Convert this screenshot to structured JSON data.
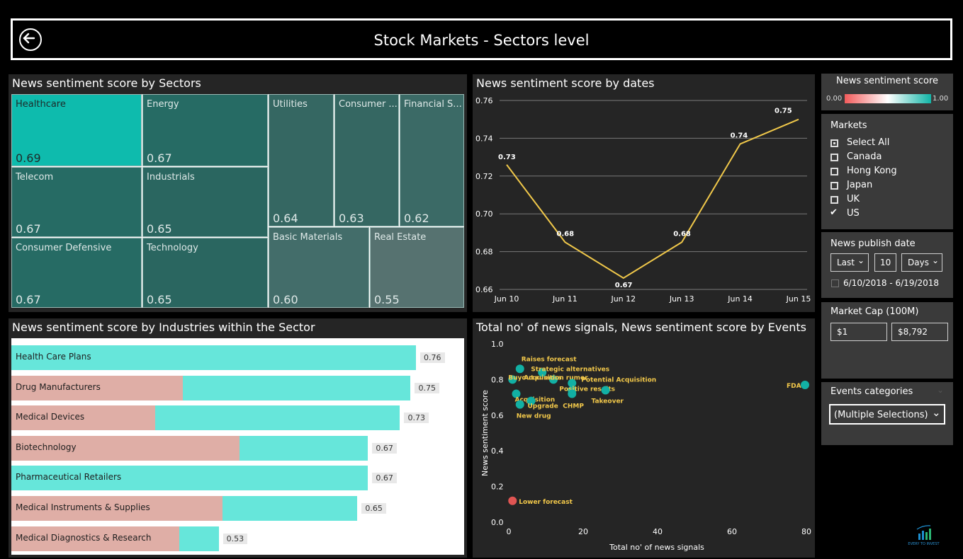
{
  "header": {
    "title": "Stock Markets - Sectors level"
  },
  "colors": {
    "teal": "#66e6da",
    "pink": "#dfaea6",
    "line": "#f0c84a",
    "panel": "#252525"
  },
  "sectors": {
    "title": "News sentiment score by Sectors",
    "tiles": [
      {
        "name": "Healthcare",
        "value": "0.69",
        "color": "#0ebbad"
      },
      {
        "name": "Energy",
        "value": "0.67",
        "color": "#266b64"
      },
      {
        "name": "Telecom",
        "value": "0.67",
        "color": "#266b64"
      },
      {
        "name": "Industrials",
        "value": "0.65",
        "color": "#2a6660"
      },
      {
        "name": "Consumer Defensive",
        "value": "0.67",
        "color": "#266b64"
      },
      {
        "name": "Technology",
        "value": "0.65",
        "color": "#2a6660"
      },
      {
        "name": "Utilities",
        "value": "0.64",
        "color": "#356762"
      },
      {
        "name": "Consumer ...",
        "value": "0.63",
        "color": "#356762"
      },
      {
        "name": "Financial S...",
        "value": "0.62",
        "color": "#3b6a66"
      },
      {
        "name": "Basic Materials",
        "value": "0.60",
        "color": "#436d6a"
      },
      {
        "name": "Real Estate",
        "value": "0.55",
        "color": "#567270"
      }
    ]
  },
  "dates": {
    "title": "News sentiment score by dates",
    "chart_data": {
      "type": "line",
      "x": [
        "Jun 10",
        "Jun 11",
        "Jun 12",
        "Jun 13",
        "Jun 14",
        "Jun 15"
      ],
      "series": [
        {
          "values": [
            0.726,
            0.685,
            0.666,
            0.685,
            0.737,
            0.75
          ],
          "labels": [
            "0.73",
            "0.68",
            "0.67",
            "0.68",
            "0.74",
            "0.75"
          ]
        }
      ],
      "ylim": [
        0.66,
        0.76
      ],
      "yticks": [
        "0.76",
        "0.74",
        "0.72",
        "0.70",
        "0.68",
        "0.66"
      ],
      "grid": true
    }
  },
  "industries": {
    "title": "News sentiment score by Industries within the Sector",
    "chart_data": {
      "type": "bar",
      "categories": [
        "Health Care Plans",
        "Drug Manufacturers",
        "Medical Devices",
        "Biotechnology",
        "Pharmaceutical Retailers",
        "Medical Instruments & Supplies",
        "Medical Diagnostics & Research"
      ],
      "values": [
        0.76,
        0.75,
        0.73,
        0.67,
        0.67,
        0.65,
        0.53
      ],
      "labels": [
        "0.76",
        "0.75",
        "0.73",
        "0.67",
        "0.67",
        "0.65",
        "0.53"
      ],
      "secondary_fraction": [
        0,
        0.43,
        0.37,
        0.64,
        0,
        0.61,
        0.81
      ]
    }
  },
  "events": {
    "title": "Total no' of news signals, News sentiment score by Events",
    "chart_data": {
      "type": "scatter",
      "xlabel": "Total no' of news signals",
      "ylabel": "News sentiment score",
      "xlim": [
        0,
        80
      ],
      "ylim": [
        0,
        1.0
      ],
      "xticks": [
        "0",
        "20",
        "40",
        "60",
        "80"
      ],
      "yticks": [
        "1.0",
        "0.8",
        "0.6",
        "0.4",
        "0.2",
        "0.0"
      ],
      "points": [
        {
          "label": "Raises forecast",
          "x": 3,
          "y": 0.86
        },
        {
          "label": "Strategic alternatives",
          "x": 9,
          "y": 0.84
        },
        {
          "label": "Acquisition rumor",
          "x": 12,
          "y": 0.8
        },
        {
          "label": "Potential Acquisition",
          "x": 17,
          "y": 0.78
        },
        {
          "label": "Buyout rumors",
          "x": 1,
          "y": 0.8
        },
        {
          "label": "Positive results",
          "x": 17,
          "y": 0.74
        },
        {
          "label": "Acquisition",
          "x": 2,
          "y": 0.72
        },
        {
          "label": "Upgrade",
          "x": 6,
          "y": 0.68
        },
        {
          "label": "CHMP",
          "x": 17,
          "y": 0.72
        },
        {
          "label": "Takeover",
          "x": 26,
          "y": 0.74
        },
        {
          "label": "New drug",
          "x": 3,
          "y": 0.66
        },
        {
          "label": "FDA",
          "x": 80,
          "y": 0.77
        },
        {
          "label": "Lower forecast",
          "x": 1,
          "y": 0.12
        }
      ]
    }
  },
  "legend": {
    "title": "News sentiment score",
    "min": "0.00",
    "max": "1.00"
  },
  "markets": {
    "title": "Markets",
    "options": [
      {
        "label": "Select All",
        "state": "partial"
      },
      {
        "label": "Canada",
        "state": "off"
      },
      {
        "label": "Hong Kong",
        "state": "off"
      },
      {
        "label": "Japan",
        "state": "off"
      },
      {
        "label": "UK",
        "state": "off"
      },
      {
        "label": "US",
        "state": "on"
      }
    ]
  },
  "publish": {
    "title": "News publish date",
    "mode": "Last",
    "count": "10",
    "unit": "Days",
    "range": "6/10/2018 - 6/19/2018"
  },
  "marketcap": {
    "title": "Market Cap (100M)",
    "min": "$1",
    "max": "$8,792"
  },
  "events_categories": {
    "title": "Events categories",
    "value": "(Multiple Selections)"
  },
  "logo": {
    "text": "EVERY TO INVEST"
  }
}
